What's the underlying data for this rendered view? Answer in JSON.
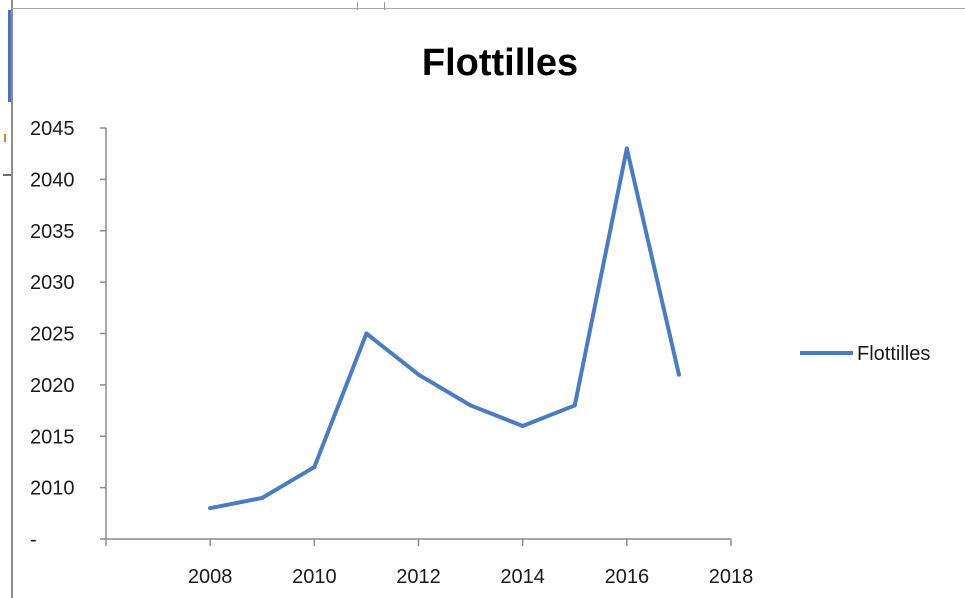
{
  "window": {
    "title": "Flottilles"
  },
  "chart_data": {
    "type": "line",
    "title": "Flottilles",
    "xlabel": "",
    "ylabel": "",
    "x": [
      2008,
      2009,
      2010,
      2011,
      2012,
      2013,
      2014,
      2015,
      2016,
      2017
    ],
    "series": [
      {
        "name": "Flottilles",
        "values": [
          2008,
          2009,
          2012,
          2025,
          2021,
          2018,
          2016,
          2018,
          2043,
          2021
        ]
      }
    ],
    "xlim": [
      2006,
      2018
    ],
    "ylim": [
      2005,
      2045
    ],
    "x_ticks": [
      "2008",
      "2010",
      "2012",
      "2014",
      "2016",
      "2018"
    ],
    "y_ticks": [
      "2045",
      "2040",
      "2035",
      "2030",
      "2025",
      "2020",
      "2015",
      "2010",
      "-"
    ],
    "grid": false,
    "legend": "right",
    "series_color": "#4a7cbf",
    "axis_color": "#8c8c8c"
  }
}
